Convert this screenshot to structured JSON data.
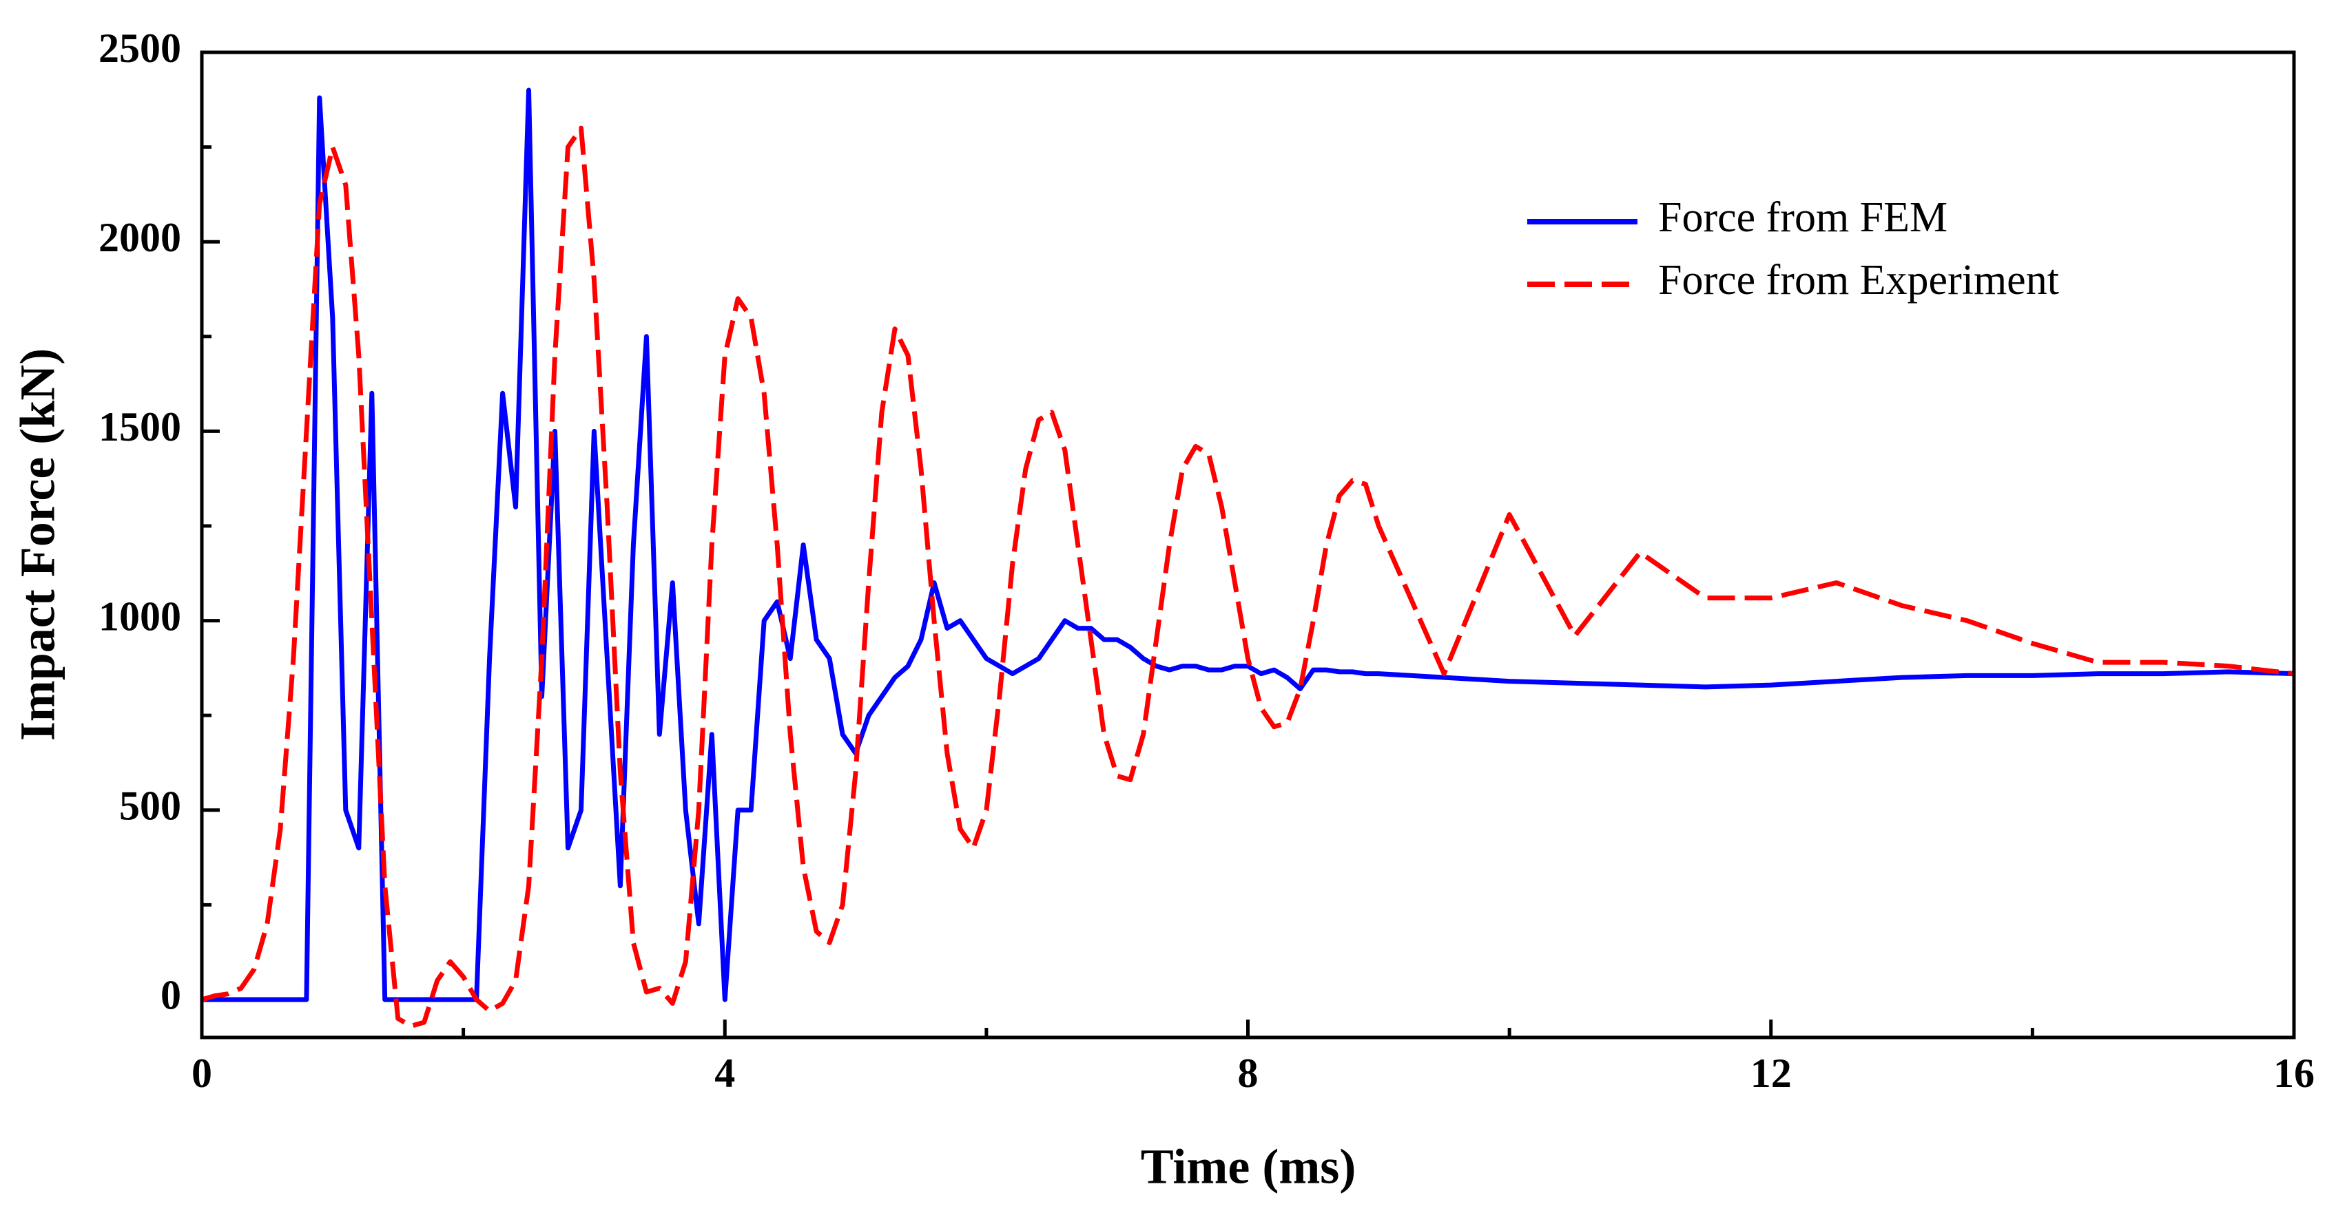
{
  "chart_data": {
    "type": "line",
    "x_label": "Time (ms)",
    "y_label": "Impact Force (kN)",
    "xlim": [
      0,
      16
    ],
    "ylim": [
      -100,
      2500
    ],
    "xticks": [
      0,
      4,
      8,
      12,
      16
    ],
    "xminorticks": [
      2,
      6,
      10,
      14
    ],
    "yticks": [
      0,
      500,
      1000,
      1500,
      2000,
      2500
    ],
    "yminorticks": [
      250,
      750,
      1250,
      1750,
      2250
    ],
    "legend": "upper right",
    "x": [
      0,
      0.1,
      0.2,
      0.3,
      0.4,
      0.5,
      0.6,
      0.7,
      0.8,
      0.9,
      1.0,
      1.1,
      1.2,
      1.3,
      1.4,
      1.5,
      1.6,
      1.7,
      1.8,
      1.9,
      2.0,
      2.1,
      2.2,
      2.3,
      2.4,
      2.5,
      2.6,
      2.7,
      2.8,
      2.9,
      3.0,
      3.1,
      3.2,
      3.3,
      3.4,
      3.5,
      3.6,
      3.7,
      3.8,
      3.9,
      4.0,
      4.1,
      4.2,
      4.3,
      4.4,
      4.5,
      4.6,
      4.7,
      4.8,
      4.9,
      5.0,
      5.1,
      5.2,
      5.3,
      5.4,
      5.5,
      5.6,
      5.7,
      5.8,
      5.9,
      6.0,
      6.1,
      6.2,
      6.3,
      6.4,
      6.5,
      6.6,
      6.7,
      6.8,
      6.9,
      7.0,
      7.1,
      7.2,
      7.3,
      7.4,
      7.5,
      7.6,
      7.7,
      7.8,
      7.9,
      8.0,
      8.1,
      8.2,
      8.3,
      8.4,
      8.5,
      8.6,
      8.7,
      8.8,
      8.9,
      9.0,
      9.5,
      10.0,
      10.5,
      11.0,
      11.5,
      12.0,
      12.5,
      13.0,
      13.5,
      14.0,
      14.5,
      15.0,
      15.5,
      16.0
    ],
    "series": [
      {
        "name": "Force from FEM",
        "color": "#0000ff",
        "dash": false,
        "values": [
          0,
          0,
          0,
          0,
          0,
          0,
          0,
          0,
          0,
          2380,
          1800,
          500,
          400,
          1600,
          0,
          0,
          0,
          0,
          0,
          0,
          0,
          0,
          900,
          1600,
          1300,
          2400,
          800,
          1500,
          400,
          500,
          1500,
          900,
          300,
          1200,
          1750,
          700,
          1100,
          500,
          200,
          700,
          0,
          500,
          500,
          1000,
          1050,
          900,
          1200,
          950,
          900,
          700,
          650,
          750,
          800,
          850,
          880,
          950,
          1100,
          980,
          1000,
          950,
          900,
          880,
          860,
          880,
          900,
          950,
          1000,
          980,
          980,
          950,
          950,
          930,
          900,
          880,
          870,
          880,
          880,
          870,
          870,
          880,
          880,
          860,
          870,
          850,
          820,
          870,
          870,
          865,
          865,
          860,
          860,
          850,
          840,
          835,
          830,
          825,
          830,
          840,
          850,
          855,
          855,
          860,
          860,
          865,
          860
        ]
      },
      {
        "name": "Force from Experiment",
        "color": "#ff0000",
        "dash": true,
        "values": [
          0,
          10,
          15,
          30,
          80,
          200,
          450,
          900,
          1500,
          2100,
          2250,
          2150,
          1700,
          1000,
          300,
          -50,
          -70,
          -60,
          50,
          100,
          60,
          0,
          -30,
          -10,
          50,
          300,
          900,
          1700,
          2250,
          2300,
          1900,
          1300,
          600,
          150,
          20,
          30,
          -10,
          100,
          500,
          1200,
          1700,
          1850,
          1800,
          1600,
          1200,
          700,
          350,
          180,
          150,
          250,
          600,
          1100,
          1550,
          1770,
          1700,
          1400,
          1000,
          650,
          450,
          400,
          500,
          800,
          1150,
          1400,
          1530,
          1550,
          1450,
          1200,
          950,
          700,
          590,
          580,
          700,
          950,
          1200,
          1400,
          1460,
          1440,
          1300,
          1100,
          900,
          770,
          720,
          730,
          820,
          1000,
          1200,
          1330,
          1370,
          1360,
          1250,
          860,
          1280,
          960,
          1180,
          1060,
          1060,
          1100,
          1040,
          1000,
          940,
          890,
          890,
          880,
          860
        ]
      }
    ]
  }
}
